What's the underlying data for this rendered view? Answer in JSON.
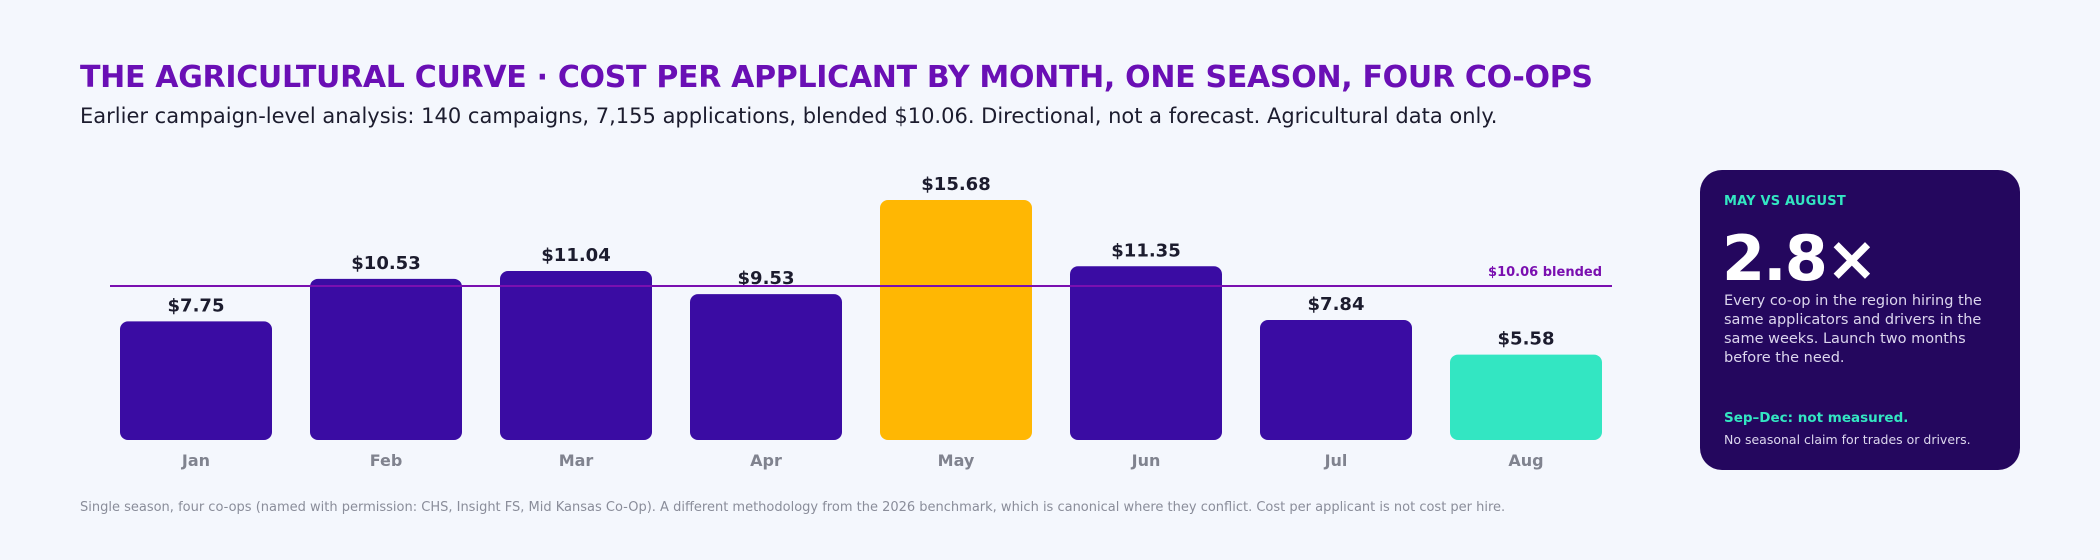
{
  "header": {
    "title": "THE AGRICULTURAL CURVE · COST PER APPLICANT BY MONTH, ONE SEASON, FOUR CO-OPS",
    "subtitle": "Earlier campaign-level analysis: 140 campaigns, 7,155 applications, blended $10.06. Directional, not a forecast. Agricultural data only."
  },
  "chart_data": {
    "type": "bar",
    "categories": [
      "Jan",
      "Feb",
      "Mar",
      "Apr",
      "May",
      "Jun",
      "Jul",
      "Aug"
    ],
    "values": [
      7.75,
      10.53,
      11.04,
      9.53,
      15.68,
      11.35,
      7.84,
      5.58
    ],
    "value_labels": [
      "$7.75",
      "$10.53",
      "$11.04",
      "$9.53",
      "$15.68",
      "$11.35",
      "$7.84",
      "$5.58"
    ],
    "reference_line": {
      "value": 10.06,
      "label": "$10.06 blended",
      "color": "#7a0fb0"
    },
    "ylim": [
      0,
      15.68
    ],
    "grid": false,
    "legend": "none",
    "colors": {
      "default": "#3a0ca3",
      "highlight_max": "#ffb703",
      "highlight_min": "#33e6c2"
    },
    "bar_colors": [
      "default",
      "default",
      "default",
      "default",
      "highlight_max",
      "default",
      "default",
      "highlight_min"
    ]
  },
  "callout": {
    "eyebrow": "MAY VS AUGUST",
    "stat": "2.8×",
    "body": "Every co-op in the region hiring the same applicators and drivers in the same weeks. Launch two months before the need.",
    "note_title": "Sep–Dec: not measured.",
    "note": "No seasonal claim for trades or drivers."
  },
  "footnote": "Single season, four co-ops (named with permission: CHS, Insight FS, Mid Kansas Co-Op). A different methodology from the 2026 benchmark, which is canonical where they conflict. Cost per applicant is not cost per hire."
}
